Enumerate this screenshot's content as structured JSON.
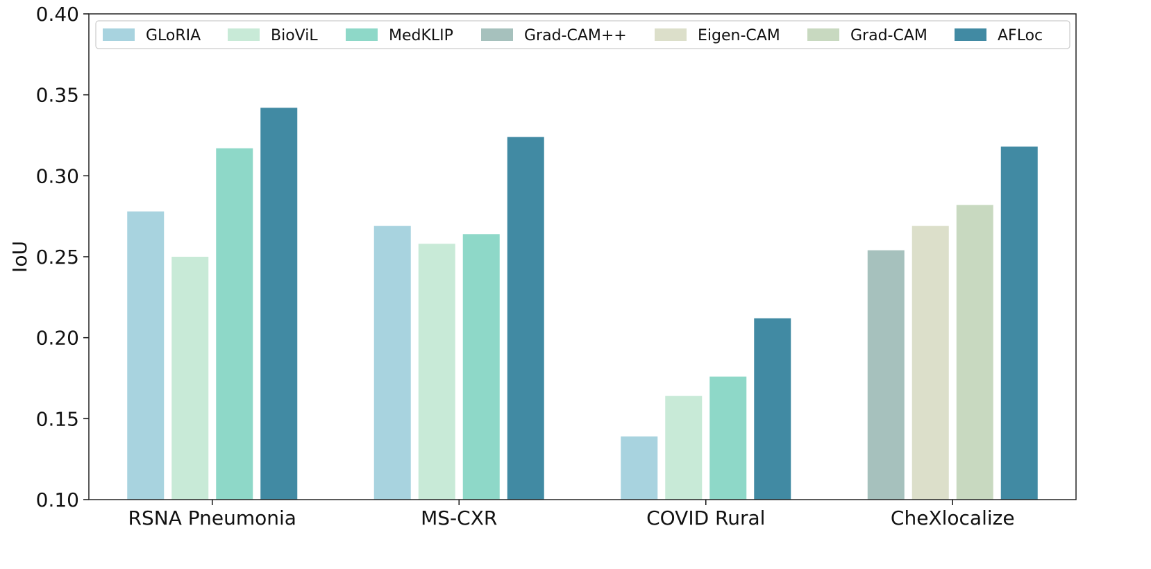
{
  "chart_data": {
    "type": "bar",
    "title": "",
    "xlabel": "",
    "ylabel": "IoU",
    "ylim": [
      0.1,
      0.4
    ],
    "yticks": [
      "0.10",
      "0.15",
      "0.20",
      "0.25",
      "0.30",
      "0.35",
      "0.40"
    ],
    "grid": false,
    "legend_position": "top",
    "categories": [
      "RSNA Pneumonia",
      "MS-CXR",
      "COVID Rural",
      "CheXlocalize"
    ],
    "series": [
      {
        "name": "GLoRIA",
        "color": "#a8d3df",
        "values": [
          0.278,
          0.269,
          0.139,
          null
        ]
      },
      {
        "name": "BioViL",
        "color": "#c8ead7",
        "values": [
          0.25,
          0.258,
          0.164,
          null
        ]
      },
      {
        "name": "MedKLIP",
        "color": "#8ed8c8",
        "values": [
          0.317,
          0.264,
          0.176,
          null
        ]
      },
      {
        "name": "Grad-CAM++",
        "color": "#a6c1bd",
        "values": [
          null,
          null,
          null,
          0.254
        ]
      },
      {
        "name": "Eigen-CAM",
        "color": "#dcdfca",
        "values": [
          null,
          null,
          null,
          0.269
        ]
      },
      {
        "name": "Grad-CAM",
        "color": "#c8d9c0",
        "values": [
          null,
          null,
          null,
          0.282
        ]
      },
      {
        "name": "AFLoc",
        "color": "#418aa3",
        "values": [
          0.342,
          0.324,
          0.212,
          0.318
        ]
      }
    ]
  }
}
